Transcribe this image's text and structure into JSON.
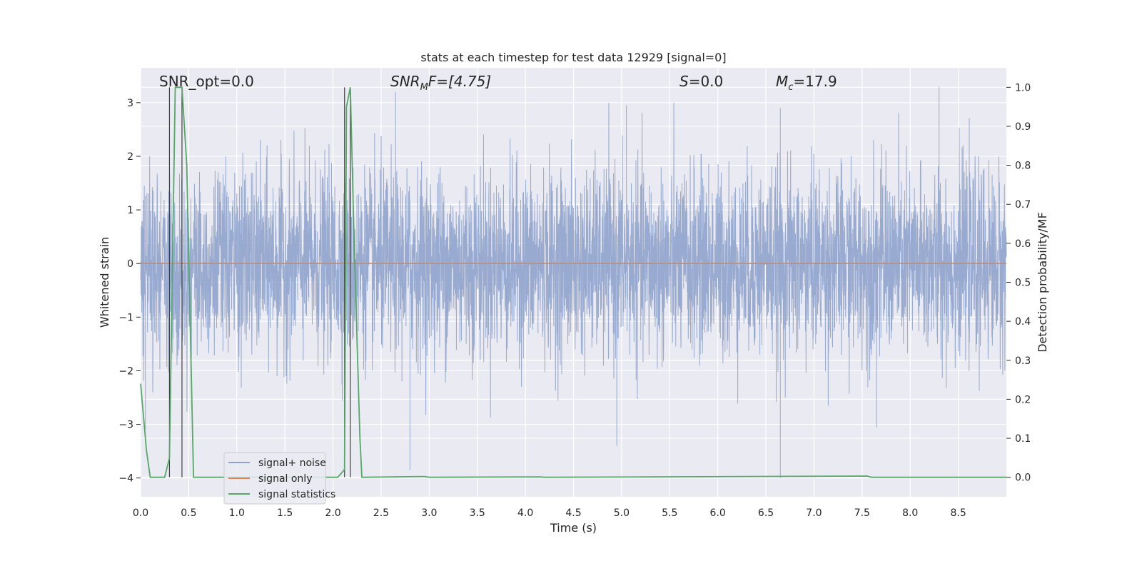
{
  "chart_data": {
    "type": "line",
    "title": "stats at each timestep for test data 12929 [signal=0]",
    "xlabel": "Time (s)",
    "ylabel": "Whitened strain",
    "y2label": "Detection probability/MF",
    "xlim": [
      0,
      9
    ],
    "ylim": [
      -4.35,
      3.65
    ],
    "y2lim": [
      -0.05,
      1.05
    ],
    "xticks": [
      0.0,
      0.5,
      1.0,
      1.5,
      2.0,
      2.5,
      3.0,
      3.5,
      4.0,
      4.5,
      5.0,
      5.5,
      6.0,
      6.5,
      7.0,
      7.5,
      8.0,
      8.5
    ],
    "xtick_labels": [
      "0.0",
      "0.5",
      "1.0",
      "1.5",
      "2.0",
      "2.5",
      "3.0",
      "3.5",
      "4.0",
      "4.5",
      "5.0",
      "5.5",
      "6.0",
      "6.5",
      "7.0",
      "7.5",
      "8.0",
      "8.5"
    ],
    "yticks": [
      -4,
      -3,
      -2,
      -1,
      0,
      1,
      2,
      3
    ],
    "ytick_labels": [
      "−4",
      "−3",
      "−2",
      "−1",
      "0",
      "1",
      "2",
      "3"
    ],
    "y2ticks": [
      0.0,
      0.1,
      0.2,
      0.3,
      0.4,
      0.5,
      0.6,
      0.7,
      0.8,
      0.9,
      1.0
    ],
    "y2tick_labels": [
      "0.0",
      "0.1",
      "0.2",
      "0.3",
      "0.4",
      "0.5",
      "0.6",
      "0.7",
      "0.8",
      "0.9",
      "1.0"
    ],
    "grid": true,
    "legend_position": "lower-left",
    "annotations": {
      "snr_opt": "SNR_opt=0.0",
      "snr_mf_base": "SNR",
      "snr_mf_sub": "M",
      "snr_mf_rest": "F=[4.75]",
      "s_italic": "S",
      "s_value": "=0.0",
      "mc_base": "M",
      "mc_sub": "c",
      "mc_value": "=17.9"
    },
    "vertical_lines_x": [
      0.3,
      0.43,
      2.12,
      2.18
    ],
    "series": [
      {
        "name": "signal+ noise",
        "color": "#8fa3cc",
        "description_level": "noisy whitened strain, amplitude ~1.5 with peaks to ~3.3",
        "noise_std": 0.85,
        "extremes": [
          {
            "x": 0.05,
            "y": -3.1
          },
          {
            "x": 2.8,
            "y": -3.85
          },
          {
            "x": 2.65,
            "y": 3.2
          },
          {
            "x": 4.95,
            "y": -3.4
          },
          {
            "x": 5.05,
            "y": 2.95
          },
          {
            "x": 6.65,
            "y": -4.0
          },
          {
            "x": 6.65,
            "y": 2.9
          },
          {
            "x": 8.3,
            "y": 3.3
          },
          {
            "x": 7.65,
            "y": -3.05
          }
        ]
      },
      {
        "name": "signal only",
        "color": "#dd8452",
        "x": [
          0,
          9
        ],
        "y": [
          0,
          0
        ]
      },
      {
        "name": "signal statistics",
        "color": "#55a868",
        "axis": "right",
        "x": [
          0.0,
          0.05,
          0.06,
          0.1,
          0.25,
          0.3,
          0.36,
          0.41,
          0.43,
          0.48,
          0.55,
          2.05,
          2.12,
          2.14,
          2.18,
          2.22,
          2.28,
          2.3,
          2.95,
          3.0,
          4.15,
          4.2,
          7.55,
          7.6,
          8.95,
          9.0
        ],
        "y": [
          0.24,
          0.1,
          0.07,
          0.0,
          0.0,
          0.05,
          1.0,
          1.0,
          1.0,
          0.8,
          0.0,
          0.0,
          0.02,
          0.95,
          1.0,
          0.6,
          0.1,
          0.0,
          0.002,
          0.0,
          0.001,
          0.0,
          0.003,
          0.0,
          0.0,
          0.0
        ]
      }
    ]
  }
}
